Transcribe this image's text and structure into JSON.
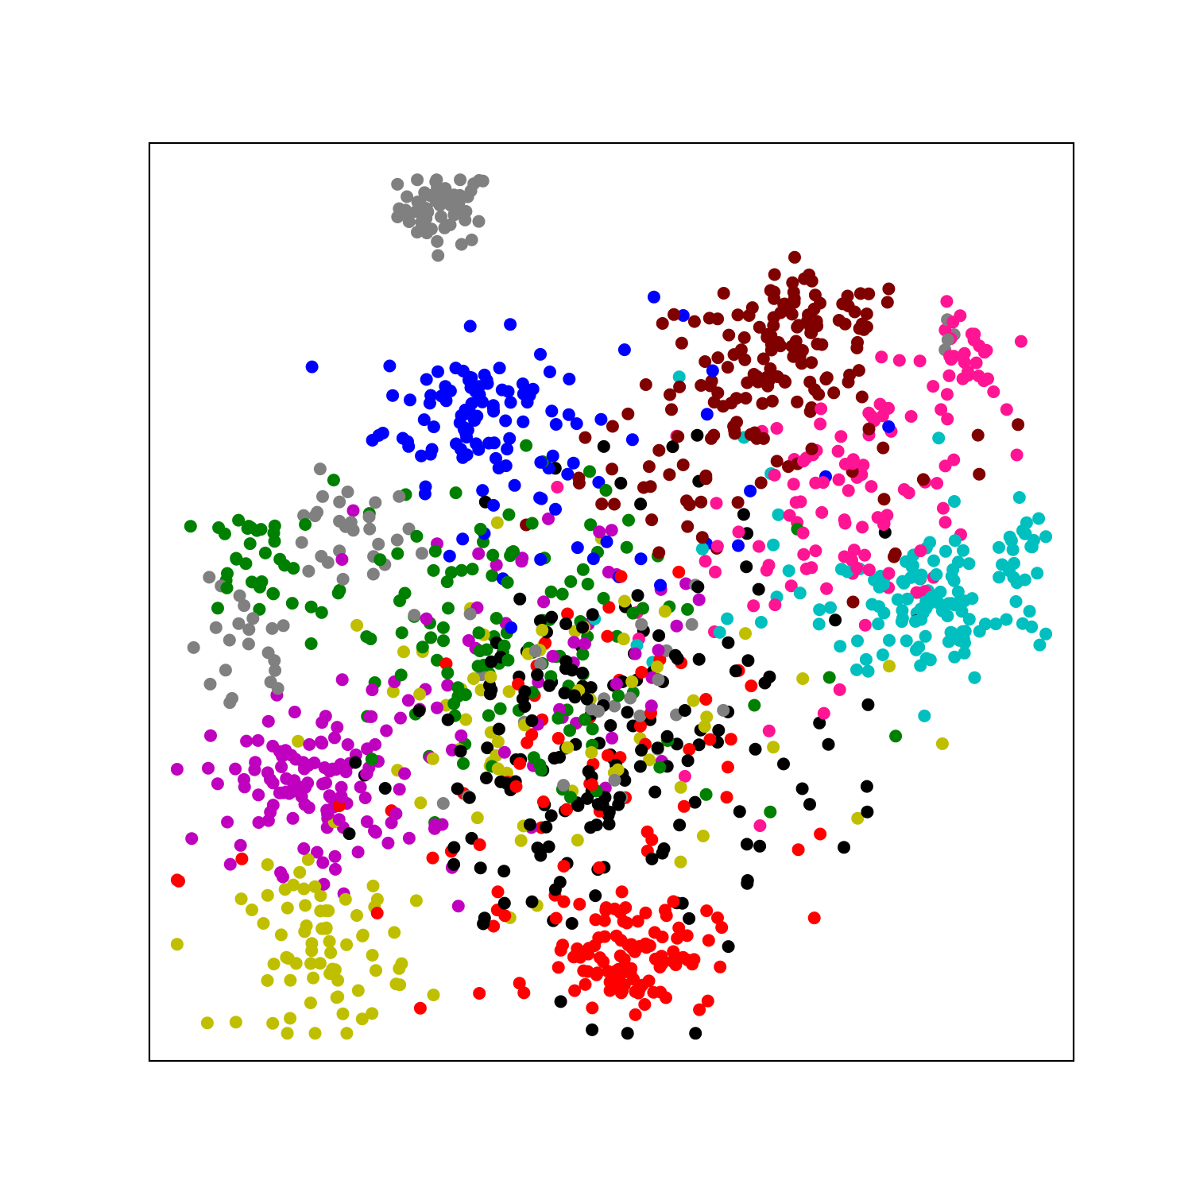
{
  "chart_data": {
    "type": "scatter",
    "title": "",
    "xlabel": "",
    "ylabel": "",
    "xlim": [
      0,
      100
    ],
    "ylim": [
      0,
      100
    ],
    "grid": false,
    "legend": "none",
    "ticks": "none",
    "point_size": "small",
    "series": [
      {
        "color": "#808080",
        "color_name": "gray",
        "clusters": [
          {
            "center": [
              32,
              93
            ],
            "spread": [
              2.5,
              2.0
            ],
            "count": 55
          },
          {
            "center": [
              21,
              57
            ],
            "spread": [
              4.0,
              3.0
            ],
            "count": 28
          },
          {
            "center": [
              10,
              44
            ],
            "spread": [
              3.0,
              4.0
            ],
            "count": 22
          },
          {
            "center": [
              47,
              40
            ],
            "spread": [
              8.0,
              8.0
            ],
            "count": 25
          },
          {
            "center": [
              86,
              80
            ],
            "spread": [
              1.0,
              1.5
            ],
            "count": 4
          }
        ]
      },
      {
        "color": "#0000ff",
        "color_name": "blue",
        "clusters": [
          {
            "center": [
              35,
              71
            ],
            "spread": [
              5.0,
              4.0
            ],
            "count": 90
          },
          {
            "center": [
              44,
              60
            ],
            "spread": [
              8.0,
              6.0
            ],
            "count": 20
          },
          {
            "center": [
              60,
              66
            ],
            "spread": [
              12.0,
              10.0
            ],
            "count": 15
          }
        ]
      },
      {
        "color": "#800000",
        "color_name": "maroon",
        "clusters": [
          {
            "center": [
              66,
              74
            ],
            "spread": [
              6.0,
              5.0
            ],
            "count": 100
          },
          {
            "center": [
              72,
              81
            ],
            "spread": [
              5.0,
              2.0
            ],
            "count": 45
          },
          {
            "center": [
              54,
              62
            ],
            "spread": [
              5.0,
              4.0
            ],
            "count": 22
          },
          {
            "center": [
              82,
              58
            ],
            "spread": [
              8.0,
              8.0
            ],
            "count": 10
          }
        ]
      },
      {
        "color": "#ff1493",
        "color_name": "deeppink",
        "clusters": [
          {
            "center": [
              77,
              62
            ],
            "spread": [
              7.0,
              6.0
            ],
            "count": 90
          },
          {
            "center": [
              88,
              76
            ],
            "spread": [
              2.0,
              3.0
            ],
            "count": 30
          },
          {
            "center": [
              60,
              48
            ],
            "spread": [
              10.0,
              10.0
            ],
            "count": 12
          }
        ]
      },
      {
        "color": "#00bfbf",
        "color_name": "teal",
        "clusters": [
          {
            "center": [
              85,
              49
            ],
            "spread": [
              6.0,
              4.0
            ],
            "count": 110
          },
          {
            "center": [
              93,
              56
            ],
            "spread": [
              2.0,
              3.0
            ],
            "count": 20
          },
          {
            "center": [
              68,
              60
            ],
            "spread": [
              8.0,
              10.0
            ],
            "count": 18
          }
        ]
      },
      {
        "color": "#008000",
        "color_name": "green",
        "clusters": [
          {
            "center": [
              11,
              55
            ],
            "spread": [
              2.5,
              3.0
            ],
            "count": 30
          },
          {
            "center": [
              35,
              46
            ],
            "spread": [
              9.0,
              9.0
            ],
            "count": 120
          },
          {
            "center": [
              60,
              36
            ],
            "spread": [
              12.0,
              12.0
            ],
            "count": 15
          }
        ]
      },
      {
        "color": "#bf00bf",
        "color_name": "magenta",
        "clusters": [
          {
            "center": [
              18,
              30
            ],
            "spread": [
              6.0,
              4.5
            ],
            "count": 120
          },
          {
            "center": [
              38,
              42
            ],
            "spread": [
              10.0,
              8.0
            ],
            "count": 40
          },
          {
            "center": [
              55,
              48
            ],
            "spread": [
              10.0,
              8.0
            ],
            "count": 15
          }
        ]
      },
      {
        "color": "#bfbf00",
        "color_name": "olive-yellow",
        "clusters": [
          {
            "center": [
              19,
              12
            ],
            "spread": [
              4.5,
              4.5
            ],
            "count": 70
          },
          {
            "center": [
              40,
              37
            ],
            "spread": [
              10.0,
              9.0
            ],
            "count": 60
          },
          {
            "center": [
              62,
              30
            ],
            "spread": [
              12.0,
              12.0
            ],
            "count": 12
          }
        ]
      },
      {
        "color": "#000000",
        "color_name": "black",
        "clusters": [
          {
            "center": [
              48,
              32
            ],
            "spread": [
              10.0,
              12.0
            ],
            "count": 170
          },
          {
            "center": [
              64,
              42
            ],
            "spread": [
              10.0,
              10.0
            ],
            "count": 18
          }
        ]
      },
      {
        "color": "#ff0000",
        "color_name": "red",
        "clusters": [
          {
            "center": [
              52,
              12
            ],
            "spread": [
              4.5,
              3.0
            ],
            "count": 100
          },
          {
            "center": [
              44,
              28
            ],
            "spread": [
              10.0,
              12.0
            ],
            "count": 70
          },
          {
            "center": [
              4,
              20
            ],
            "spread": [
              3.0,
              1.0
            ],
            "count": 3
          }
        ]
      }
    ]
  }
}
